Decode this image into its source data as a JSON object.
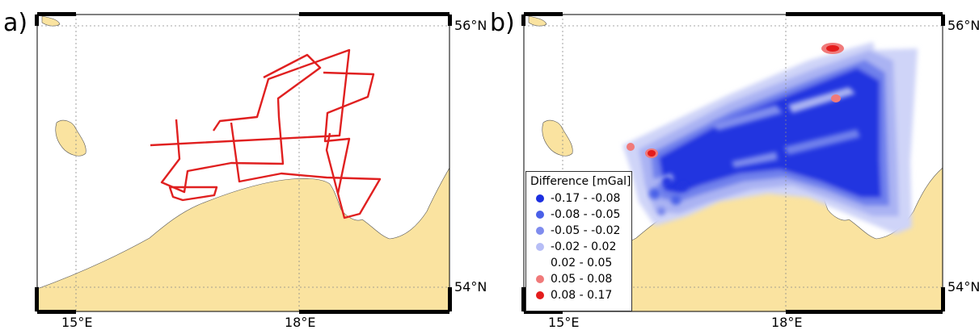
{
  "panels": [
    {
      "id": "a",
      "label": "a)"
    },
    {
      "id": "b",
      "label": "b)"
    }
  ],
  "axes": {
    "lat_labels": [
      "56°N",
      "54°N"
    ],
    "lon_labels": [
      "15°E",
      "18°E"
    ]
  },
  "legend": {
    "title": "Difference [mGal]",
    "items": [
      {
        "label": "-0.17 - -0.08",
        "color": "#1c2fe0"
      },
      {
        "label": "-0.08 - -0.05",
        "color": "#4a60e8"
      },
      {
        "label": "-0.05 - -0.02",
        "color": "#7f8cee"
      },
      {
        "label": "-0.02 - 0.02",
        "color": "#b7bef6"
      },
      {
        "label": "0.02 - 0.05",
        "color": "#ffffff"
      },
      {
        "label": "0.05 - 0.08",
        "color": "#f07a7a"
      },
      {
        "label": "0.08 - 0.17",
        "color": "#e41c1c"
      }
    ]
  },
  "colors": {
    "land": "#fae3a0",
    "track": "#e02020",
    "grid": "#8a8a8a",
    "frame": "#000000"
  }
}
